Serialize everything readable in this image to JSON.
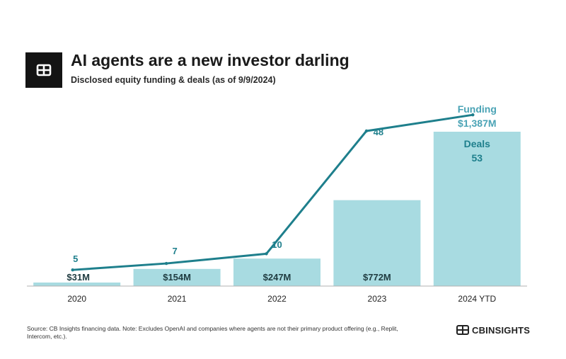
{
  "header": {
    "title": "AI agents are a new investor darling",
    "subtitle": "Disclosed equity funding & deals (as of 9/9/2024)",
    "logo_icon": "cb-logo-icon"
  },
  "chart_data": {
    "type": "bar",
    "categories": [
      "2020",
      "2021",
      "2022",
      "2023",
      "2024 YTD"
    ],
    "series": [
      {
        "name": "Funding",
        "type": "bar",
        "values": [
          31,
          154,
          247,
          772,
          1387
        ],
        "labels": [
          "$31M",
          "$154M",
          "$247M",
          "$772M",
          "$1,387M"
        ],
        "color": "#a8dbe1"
      },
      {
        "name": "Deals",
        "type": "line",
        "values": [
          5,
          7,
          10,
          48,
          53
        ],
        "labels": [
          "5",
          "7",
          "10",
          "48",
          "53"
        ],
        "color": "#1e7f8c"
      }
    ],
    "legend": {
      "funding_label": "Funding",
      "deals_label": "Deals"
    },
    "ylim_funding": [
      0,
      1387
    ],
    "ylim_deals": [
      0,
      53
    ]
  },
  "footer": {
    "source": "Source: CB Insights financing data. Note: Excludes OpenAI and companies where agents are not their primary product offering (e.g., Replit, Intercom, etc.).",
    "brand": "CBINSIGHTS",
    "brand_icon": "cb-insights-logo-icon"
  },
  "colors": {
    "bar": "#a8dbe1",
    "line": "#1e7f8c",
    "legend_funding": "#4aa3b5",
    "axis": "#b0b0b0"
  }
}
